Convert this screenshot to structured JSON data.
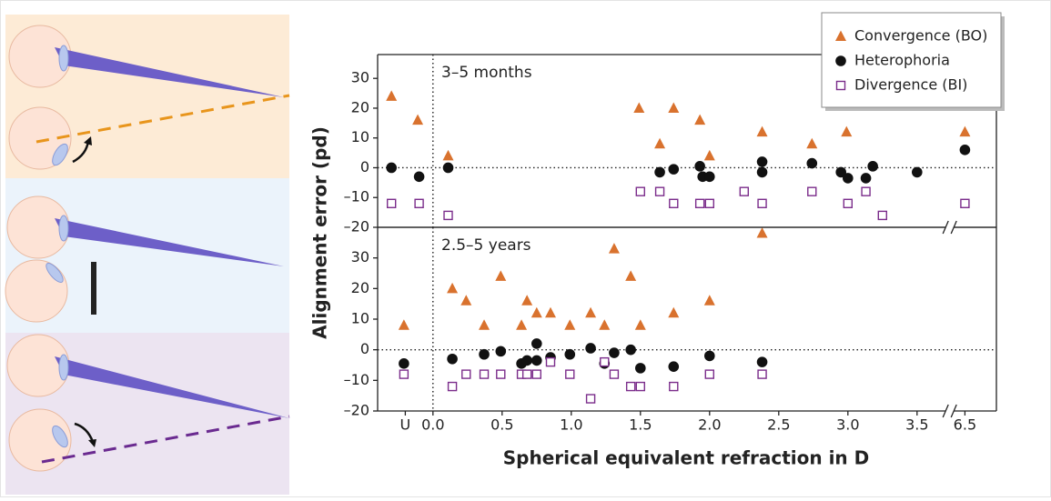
{
  "chart_data": {
    "type": "scatter",
    "xlabel": "Spherical equivalent refraction in D",
    "ylabel": "Alignment error (pd)",
    "xlim": [
      -0.4,
      6.72
    ],
    "xbreak": [
      3.7,
      6.4
    ],
    "xticks": [
      {
        "value": -0.2,
        "label": "U"
      },
      0,
      0.5,
      1,
      1.5,
      2,
      2.5,
      3,
      3.5,
      6.5
    ],
    "xtick_labels": [
      "U",
      "0.0",
      "0.5",
      "1.0",
      "1.5",
      "2.0",
      "2.5",
      "3.0",
      "3.5",
      "6.5"
    ],
    "reference_lines": {
      "x": 0,
      "y": 0
    },
    "legend_position": "upper right",
    "legend": [
      {
        "name": "Convergence (BO)",
        "color": "#d9722e",
        "marker": "triangle"
      },
      {
        "name": "Heterophoria",
        "color": "#111111",
        "marker": "circle"
      },
      {
        "name": "Divergence (BI)",
        "color": "#7b2d8b",
        "marker": "square"
      }
    ],
    "panels": [
      {
        "title": "3–5 months",
        "ylim": [
          -20,
          38
        ],
        "yticks": [
          {
            "value": -20,
            "label": "–20"
          },
          {
            "value": -10,
            "label": "–10"
          },
          0,
          10,
          20,
          30
        ],
        "series": [
          {
            "x": [
              -0.3,
              -0.11,
              0.11,
              1.49,
              1.64,
              1.74,
              1.93,
              2.0,
              2.38,
              2.38,
              2.74,
              2.99,
              6.5
            ],
            "values": [
              24,
              16,
              4,
              20,
              8,
              20,
              16,
              4,
              12,
              -22,
              8,
              12,
              12
            ]
          },
          {
            "x": [
              -0.3,
              -0.1,
              0.11,
              1.64,
              1.74,
              1.93,
              1.95,
              2.0,
              2.38,
              2.38,
              2.74,
              2.95,
              3.0,
              3.13,
              3.18,
              3.5,
              6.5
            ],
            "values": [
              0,
              -3,
              0,
              -1.5,
              -0.5,
              0.5,
              -3,
              -3,
              2,
              -1.5,
              1.5,
              -1.5,
              -3.5,
              -3.5,
              0.5,
              -1.5,
              6
            ]
          },
          {
            "x": [
              -0.3,
              -0.1,
              0.11,
              1.5,
              1.64,
              1.74,
              1.93,
              2.0,
              2.25,
              2.38,
              2.74,
              3.0,
              3.13,
              3.25,
              6.5
            ],
            "values": [
              -12,
              -12,
              -16,
              -8,
              -8,
              -12,
              -12,
              -12,
              -8,
              -12,
              -8,
              -12,
              -8,
              -16,
              -12
            ]
          }
        ]
      },
      {
        "title": "2.5–5 years",
        "ylim": [
          -20,
          40
        ],
        "yticks": [
          {
            "value": -20,
            "label": "–20"
          },
          {
            "value": -10,
            "label": "–10"
          },
          0,
          10,
          20,
          30
        ],
        "series": [
          {
            "x": [
              -0.21,
              0.14,
              0.24,
              0.37,
              0.49,
              0.64,
              0.68,
              0.75,
              0.85,
              0.99,
              1.14,
              1.24,
              1.31,
              1.43,
              1.5,
              1.74,
              2.0
            ],
            "values": [
              8,
              20,
              16,
              8,
              24,
              8,
              16,
              12,
              12,
              8,
              12,
              8,
              33,
              24,
              8,
              12,
              16
            ]
          },
          {
            "x": [
              -0.21,
              0.14,
              0.37,
              0.49,
              0.64,
              0.68,
              0.75,
              0.75,
              0.85,
              0.99,
              1.14,
              1.24,
              1.31,
              1.43,
              1.5,
              1.74,
              2.0,
              2.38
            ],
            "values": [
              -4.5,
              -3,
              -1.5,
              -0.5,
              -4.5,
              -3.5,
              2,
              -3.5,
              -2.5,
              -1.5,
              0.5,
              -4.5,
              -1,
              0,
              -6,
              -5.5,
              -2,
              -4
            ]
          },
          {
            "x": [
              -0.21,
              0.14,
              0.24,
              0.37,
              0.49,
              0.64,
              0.68,
              0.75,
              0.85,
              0.99,
              1.14,
              1.24,
              1.31,
              1.43,
              1.5,
              1.74,
              2.0,
              2.38
            ],
            "values": [
              -8,
              -12,
              -8,
              -8,
              -8,
              -8,
              -8,
              -8,
              -4,
              -8,
              -16,
              -4,
              -8,
              -12,
              -12,
              -12,
              -8,
              -8
            ]
          }
        ]
      }
    ]
  }
}
